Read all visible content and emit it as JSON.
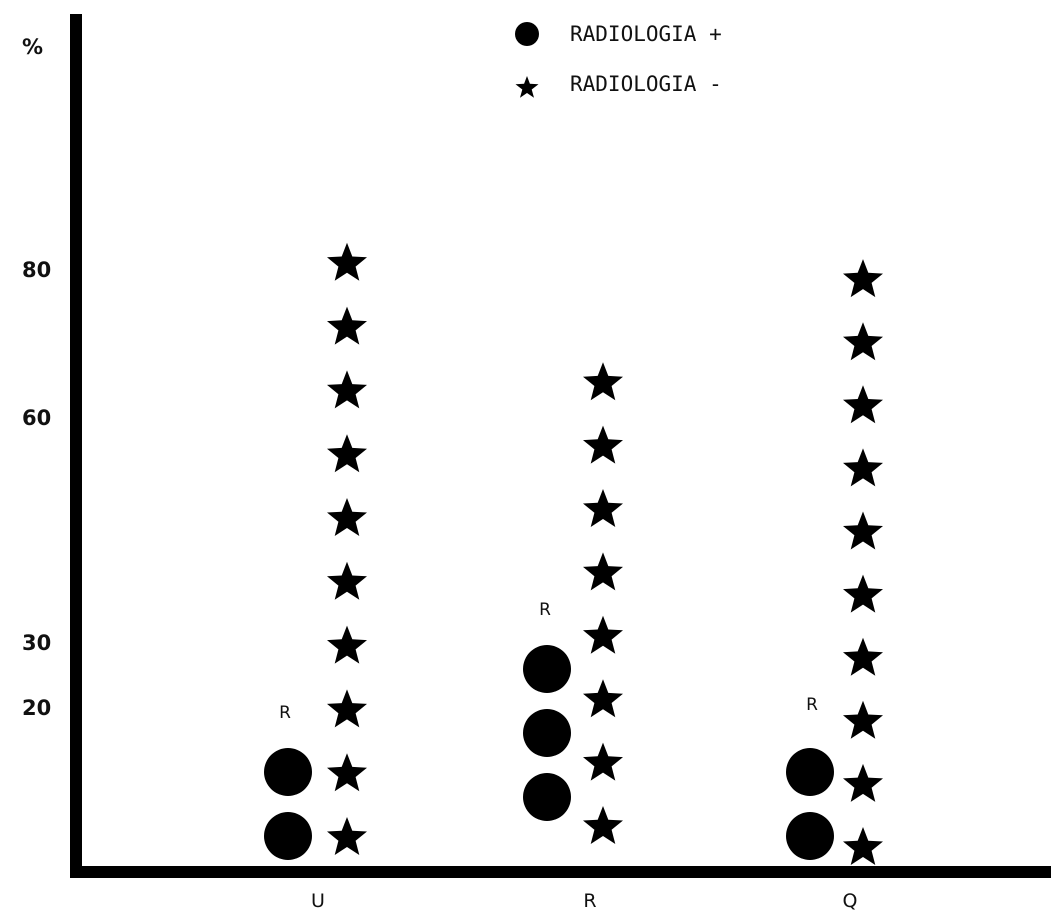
{
  "chart_data": {
    "type": "scatter",
    "ylabel": "%",
    "yticks": [
      "20",
      "30",
      "60",
      "80"
    ],
    "categories": [
      "U",
      "R",
      "Q"
    ],
    "legend": [
      {
        "marker": "circle",
        "label": "RADIOLOGIA +"
      },
      {
        "marker": "star",
        "label": "RADIOLOGIA -"
      }
    ],
    "legend_placement": "top-center",
    "series": [
      {
        "marker": "circle",
        "counts": [
          2,
          3,
          2
        ]
      },
      {
        "marker": "star",
        "counts": [
          10,
          8,
          10
        ]
      }
    ],
    "annotations": [
      {
        "category": "U",
        "text": "R"
      },
      {
        "category": "R",
        "text": "R"
      },
      {
        "category": "Q",
        "text": "R"
      }
    ],
    "colors": {
      "ink": "#000000",
      "background": "#ffffff"
    }
  }
}
